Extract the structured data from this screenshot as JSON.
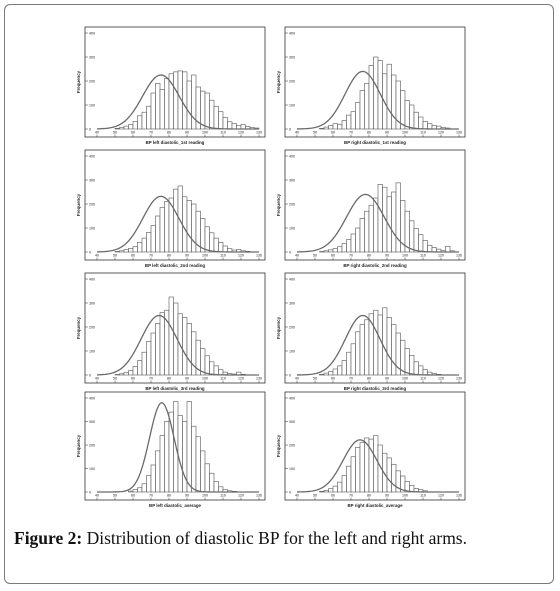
{
  "figure": {
    "caption_label": "Figure 2:",
    "caption_text": "Distribution of diastolic BP for the left and right arms."
  },
  "colors": {
    "bar_stroke": "#555555",
    "curve": "#6a6a6a",
    "panel_border": "#333333"
  },
  "chart_data": [
    {
      "type": "bar",
      "xlabel": "BP left diastolic_1st reading",
      "ylabel": "Frequency",
      "xlim": [
        40,
        130
      ],
      "ylim": [
        0,
        400
      ],
      "xticks": [
        40,
        50,
        60,
        70,
        80,
        90,
        100,
        110,
        120,
        130
      ],
      "yticks": [
        0,
        100,
        200,
        300,
        400
      ],
      "bin_start": 50,
      "bin_width": 2.5,
      "values": [
        3,
        6,
        12,
        18,
        32,
        55,
        70,
        95,
        150,
        190,
        165,
        210,
        230,
        238,
        242,
        238,
        200,
        225,
        175,
        158,
        150,
        120,
        95,
        72,
        48,
        30,
        22,
        14,
        18,
        10,
        6,
        4
      ],
      "curve": {
        "mean": 75.5,
        "sd": 10.2,
        "peak": 225
      }
    },
    {
      "type": "bar",
      "xlabel": "BP right diastolic_1st reading",
      "ylabel": "Frequency",
      "xlim": [
        40,
        130
      ],
      "ylim": [
        0,
        400
      ],
      "xticks": [
        40,
        50,
        60,
        70,
        80,
        90,
        100,
        110,
        120,
        130
      ],
      "yticks": [
        0,
        100,
        200,
        300,
        400
      ],
      "bin_start": 52.5,
      "bin_width": 2.5,
      "values": [
        3,
        8,
        14,
        22,
        20,
        35,
        58,
        72,
        110,
        160,
        190,
        265,
        300,
        285,
        230,
        270,
        225,
        200,
        160,
        118,
        100,
        70,
        50,
        32,
        22,
        14,
        12,
        6,
        4
      ],
      "curve": {
        "mean": 76.5,
        "sd": 9.8,
        "peak": 240
      }
    },
    {
      "type": "bar",
      "xlabel": "BP left diastolic_2nd reading",
      "ylabel": "Frequency",
      "xlim": [
        40,
        130
      ],
      "ylim": [
        0,
        400
      ],
      "xticks": [
        40,
        50,
        60,
        70,
        80,
        90,
        100,
        110,
        120,
        130
      ],
      "yticks": [
        0,
        100,
        200,
        300,
        400
      ],
      "bin_start": 50,
      "bin_width": 2.5,
      "values": [
        2,
        5,
        10,
        15,
        22,
        40,
        58,
        82,
        110,
        150,
        185,
        210,
        225,
        262,
        275,
        230,
        215,
        200,
        170,
        140,
        105,
        80,
        58,
        40,
        25,
        14,
        8,
        10,
        5,
        3
      ],
      "curve": {
        "mean": 75.5,
        "sd": 10.0,
        "peak": 232
      }
    },
    {
      "type": "bar",
      "xlabel": "BP right diastolic_2nd reading",
      "ylabel": "Frequency",
      "xlim": [
        40,
        130
      ],
      "ylim": [
        0,
        400
      ],
      "xticks": [
        40,
        50,
        60,
        70,
        80,
        90,
        100,
        110,
        120,
        130
      ],
      "yticks": [
        0,
        100,
        200,
        300,
        400
      ],
      "bin_start": 52.5,
      "bin_width": 2.5,
      "values": [
        2,
        5,
        9,
        14,
        22,
        35,
        52,
        75,
        100,
        140,
        170,
        195,
        225,
        282,
        270,
        230,
        250,
        288,
        215,
        170,
        130,
        98,
        72,
        48,
        28,
        18,
        12,
        6,
        24,
        5
      ],
      "curve": {
        "mean": 78,
        "sd": 10.5,
        "peak": 240
      }
    },
    {
      "type": "bar",
      "xlabel": "BP left diastolic_3rd reading",
      "ylabel": "Frequency",
      "xlim": [
        40,
        130
      ],
      "ylim": [
        0,
        400
      ],
      "xticks": [
        40,
        50,
        60,
        70,
        80,
        90,
        100,
        110,
        120,
        130
      ],
      "yticks": [
        0,
        100,
        200,
        300,
        400
      ],
      "bin_start": 50,
      "bin_width": 2.5,
      "values": [
        2,
        5,
        10,
        18,
        35,
        60,
        95,
        140,
        175,
        215,
        260,
        270,
        325,
        300,
        255,
        240,
        215,
        180,
        145,
        110,
        80,
        55,
        38,
        22,
        12,
        6,
        4,
        12,
        3
      ],
      "curve": {
        "mean": 74.5,
        "sd": 10.0,
        "peak": 248
      }
    },
    {
      "type": "bar",
      "xlabel": "BP right diastolic_3rd reading",
      "ylabel": "Frequency",
      "xlim": [
        40,
        130
      ],
      "ylim": [
        0,
        400
      ],
      "xticks": [
        40,
        50,
        60,
        70,
        80,
        90,
        100,
        110,
        120,
        130
      ],
      "yticks": [
        0,
        100,
        200,
        300,
        400
      ],
      "bin_start": 52.5,
      "bin_width": 2.5,
      "values": [
        3,
        8,
        14,
        25,
        38,
        60,
        95,
        130,
        180,
        210,
        230,
        255,
        270,
        250,
        280,
        240,
        210,
        175,
        145,
        110,
        82,
        55,
        38,
        22,
        12,
        6,
        3
      ],
      "curve": {
        "mean": 76.5,
        "sd": 9.6,
        "peak": 248
      }
    },
    {
      "type": "bar",
      "xlabel": "BP left diastolic_average",
      "ylabel": "Frequency",
      "xlim": [
        40,
        130
      ],
      "ylim": [
        0,
        400
      ],
      "xticks": [
        40,
        50,
        60,
        70,
        80,
        90,
        100,
        110,
        120,
        130
      ],
      "yticks": [
        0,
        100,
        200,
        300,
        400
      ],
      "bin_start": 57.5,
      "bin_width": 2.5,
      "values": [
        4,
        10,
        18,
        35,
        70,
        115,
        175,
        240,
        300,
        340,
        385,
        325,
        300,
        385,
        280,
        235,
        175,
        120,
        80,
        45,
        22,
        10,
        5,
        3
      ],
      "curve": {
        "mean": 76,
        "sd": 6.8,
        "peak": 380
      }
    },
    {
      "type": "bar",
      "xlabel": "BP right diastolic_average",
      "ylabel": "Frequency",
      "xlim": [
        40,
        130
      ],
      "ylim": [
        0,
        400
      ],
      "xticks": [
        40,
        50,
        60,
        70,
        80,
        90,
        100,
        110,
        120,
        130
      ],
      "yticks": [
        0,
        100,
        200,
        300,
        400
      ],
      "bin_start": 52.5,
      "bin_width": 2.5,
      "values": [
        3,
        7,
        14,
        25,
        42,
        70,
        110,
        150,
        190,
        210,
        230,
        225,
        240,
        200,
        165,
        145,
        118,
        90,
        68,
        45,
        28,
        15,
        10,
        5
      ],
      "curve": {
        "mean": 75,
        "sd": 9.4,
        "peak": 222
      }
    }
  ]
}
